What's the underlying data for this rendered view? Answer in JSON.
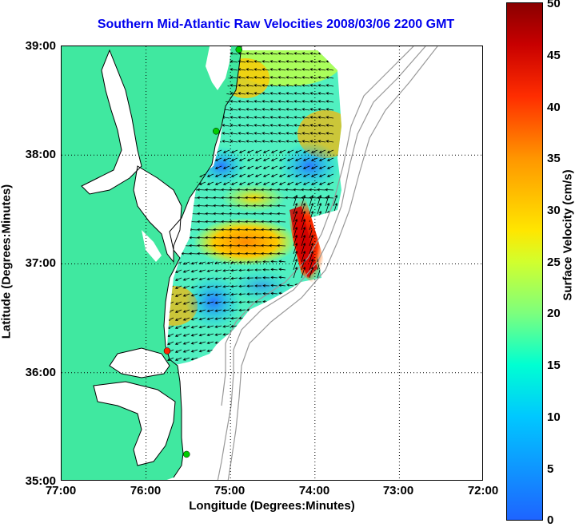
{
  "title": "Southern Mid-Atlantic Raw Velocities 2008/03/06 2200 GMT",
  "x_axis": {
    "label": "Longitude (Degrees:Minutes)",
    "ticks": [
      "77:00",
      "76:00",
      "75:00",
      "74:00",
      "73:00",
      "72:00"
    ]
  },
  "y_axis": {
    "label": "Latitude (Degrees:Minutes)",
    "ticks": [
      "39:00",
      "38:00",
      "37:00",
      "36:00",
      "35:00"
    ]
  },
  "colorbar": {
    "title": "Surface Velocity (cm/s)",
    "ticks": [
      "50",
      "45",
      "40",
      "35",
      "30",
      "25",
      "20",
      "15",
      "10",
      "5",
      "0"
    ],
    "min": 0,
    "max": 50,
    "colormap": "jet"
  },
  "map": {
    "land_color": "#40e8a0",
    "water_color": "#ffffff",
    "bathymetry_color": "#999999",
    "grid": "dotted",
    "lon_range": [
      -77,
      -72
    ],
    "lat_range": [
      35,
      39
    ],
    "station_markers": [
      {
        "color": "#00cc00",
        "lon": -74.9,
        "lat": 38.97
      },
      {
        "color": "#00cc00",
        "lon": -75.17,
        "lat": 38.22
      },
      {
        "color": "#ff2200",
        "lon": -75.75,
        "lat": 36.2
      },
      {
        "color": "#00cc00",
        "lon": -75.52,
        "lat": 35.25
      }
    ]
  }
}
